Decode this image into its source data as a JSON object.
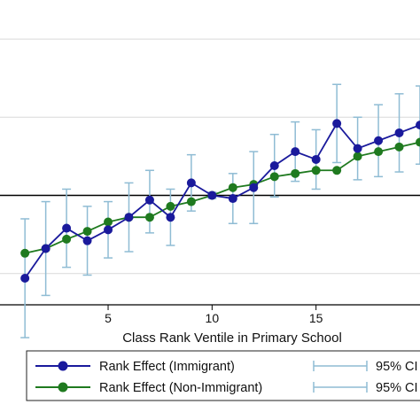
{
  "chart_data": {
    "type": "line",
    "xlabel": "Class Rank Ventile in Primary School",
    "ylabel": "",
    "xlim": [
      -0.2,
      20
    ],
    "ylim": [
      -0.7,
      1.25
    ],
    "x_ticks": [
      5,
      10,
      15
    ],
    "y_gridlines": [
      -0.5,
      0,
      0.5,
      1
    ],
    "reference_line_y": 0,
    "grid": true,
    "legend_position": "bottom",
    "x": [
      1,
      2,
      3,
      4,
      5,
      6,
      7,
      8,
      9,
      10,
      11,
      12,
      13,
      14,
      15,
      16,
      17,
      18,
      19,
      20
    ],
    "series": [
      {
        "name": "Rank Effect (Immigrant)",
        "color": "#1a1a9c",
        "values": [
          -0.53,
          -0.34,
          -0.21,
          -0.29,
          -0.22,
          -0.14,
          -0.03,
          -0.14,
          0.08,
          0.0,
          -0.02,
          0.05,
          0.19,
          0.28,
          0.23,
          0.46,
          0.3,
          0.35,
          0.4,
          0.45
        ],
        "ci_low": [
          -0.91,
          -0.64,
          -0.46,
          -0.51,
          -0.4,
          -0.36,
          -0.24,
          -0.32,
          -0.1,
          -0.02,
          -0.18,
          -0.18,
          -0.01,
          0.09,
          0.04,
          0.21,
          0.1,
          0.12,
          0.15,
          0.2
        ],
        "ci_high": [
          -0.15,
          -0.04,
          0.04,
          -0.07,
          -0.04,
          0.08,
          0.16,
          0.04,
          0.26,
          0.02,
          0.14,
          0.28,
          0.39,
          0.47,
          0.42,
          0.71,
          0.5,
          0.58,
          0.65,
          0.7
        ]
      },
      {
        "name": "Rank Effect (Non-Immigrant)",
        "color": "#1f7a1f",
        "values": [
          -0.37,
          -0.34,
          -0.28,
          -0.23,
          -0.17,
          -0.14,
          -0.14,
          -0.07,
          -0.04,
          0.0,
          0.05,
          0.07,
          0.12,
          0.14,
          0.16,
          0.16,
          0.25,
          0.28,
          0.31,
          0.34
        ]
      }
    ],
    "legend_entries": [
      "Rank Effect (Immigrant)",
      "95% CI",
      "Rank Effect (Non-Immigrant)",
      "95% CI"
    ],
    "ci_color": "#8fbcd4"
  }
}
